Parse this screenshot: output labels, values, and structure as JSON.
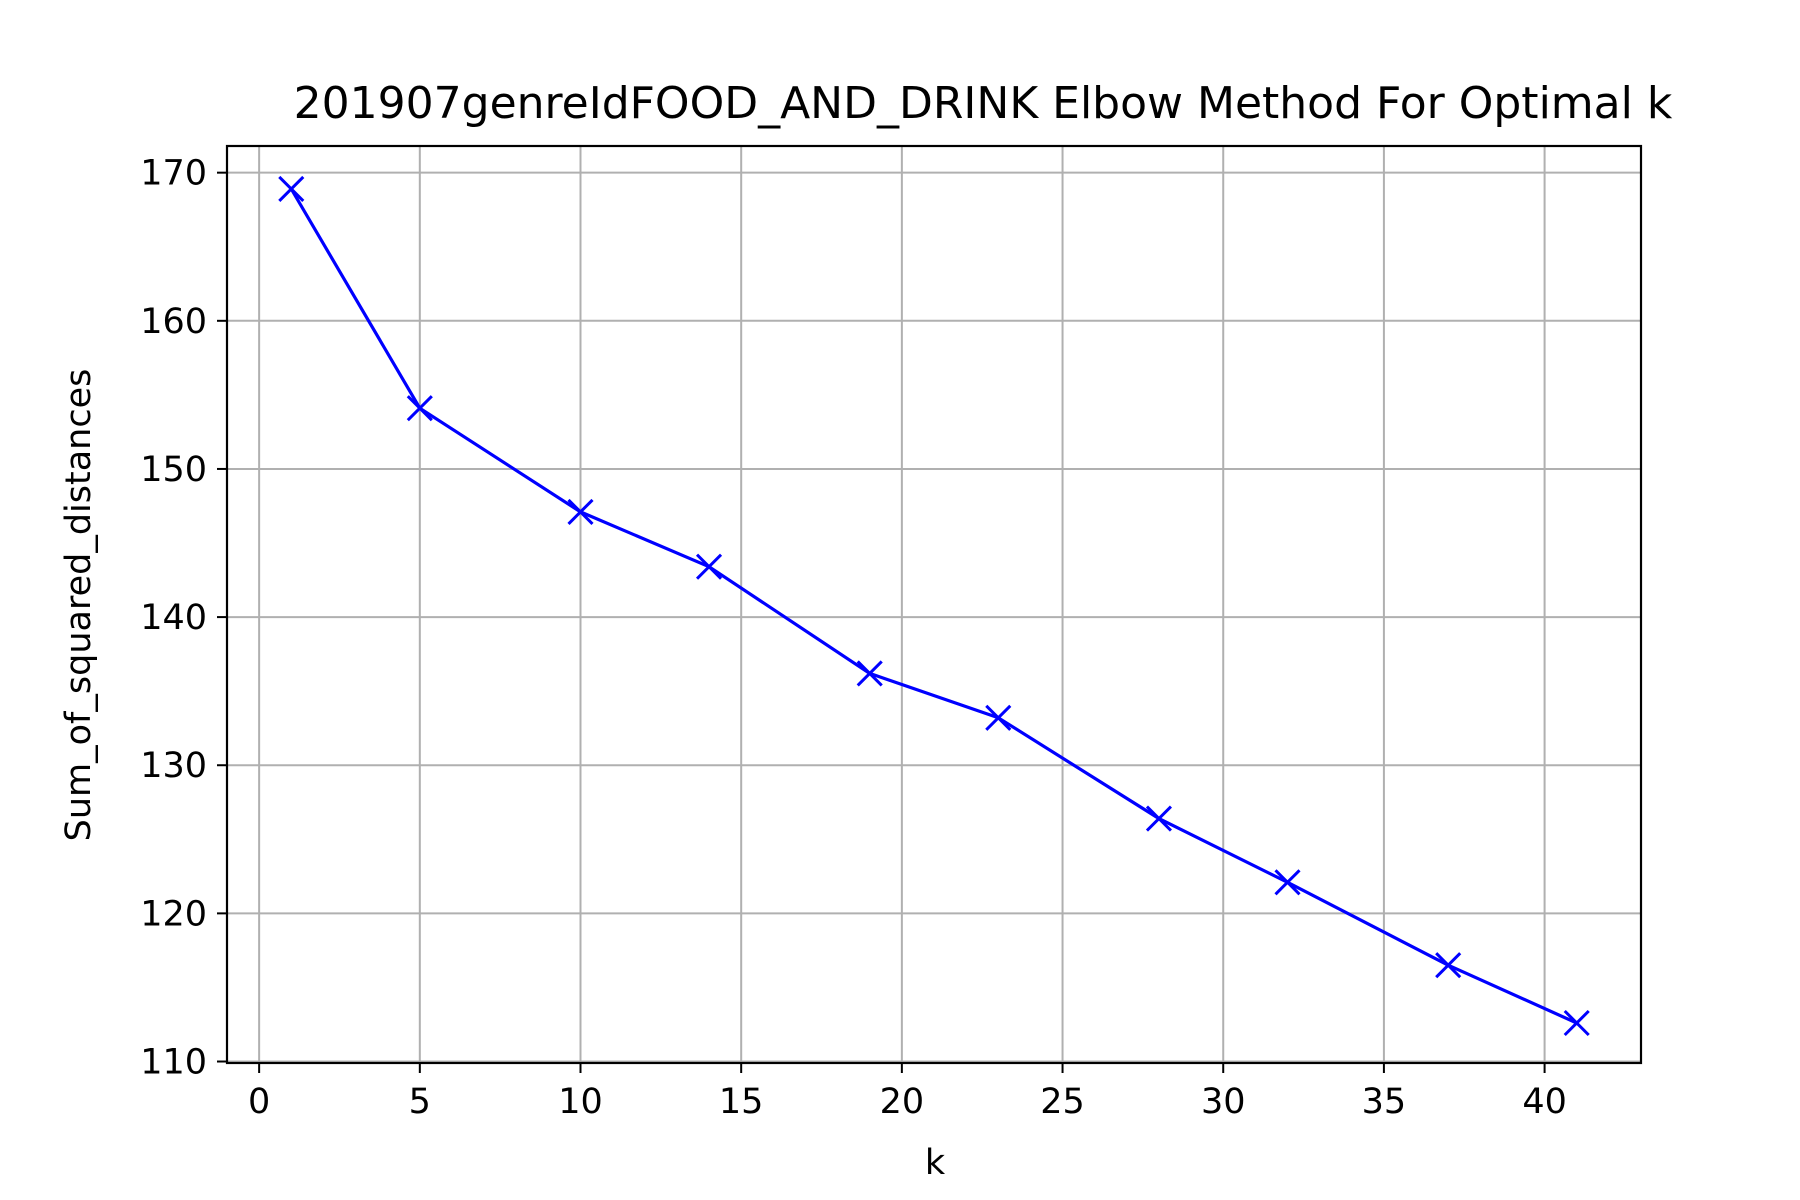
{
  "chart_data": {
    "type": "line",
    "title": "201907genreIdFOOD_AND_DRINK Elbow Method For Optimal k",
    "xlabel": "k",
    "ylabel": "Sum_of_squared_distances",
    "xlim": [
      -1.0,
      43.0
    ],
    "ylim": [
      109.9,
      171.8
    ],
    "x_ticks": [
      0,
      5,
      10,
      15,
      20,
      25,
      30,
      35,
      40
    ],
    "y_ticks": [
      110,
      120,
      130,
      140,
      150,
      160,
      170
    ],
    "grid": true,
    "marker": "x",
    "colors": {
      "series": "#0000ff"
    },
    "series": [
      {
        "x": [
          1,
          5,
          10,
          14,
          19,
          23,
          28,
          32,
          37,
          41
        ],
        "values": [
          168.9,
          154.1,
          147.1,
          143.4,
          136.2,
          133.2,
          126.4,
          122.1,
          116.5,
          112.6
        ]
      }
    ]
  }
}
